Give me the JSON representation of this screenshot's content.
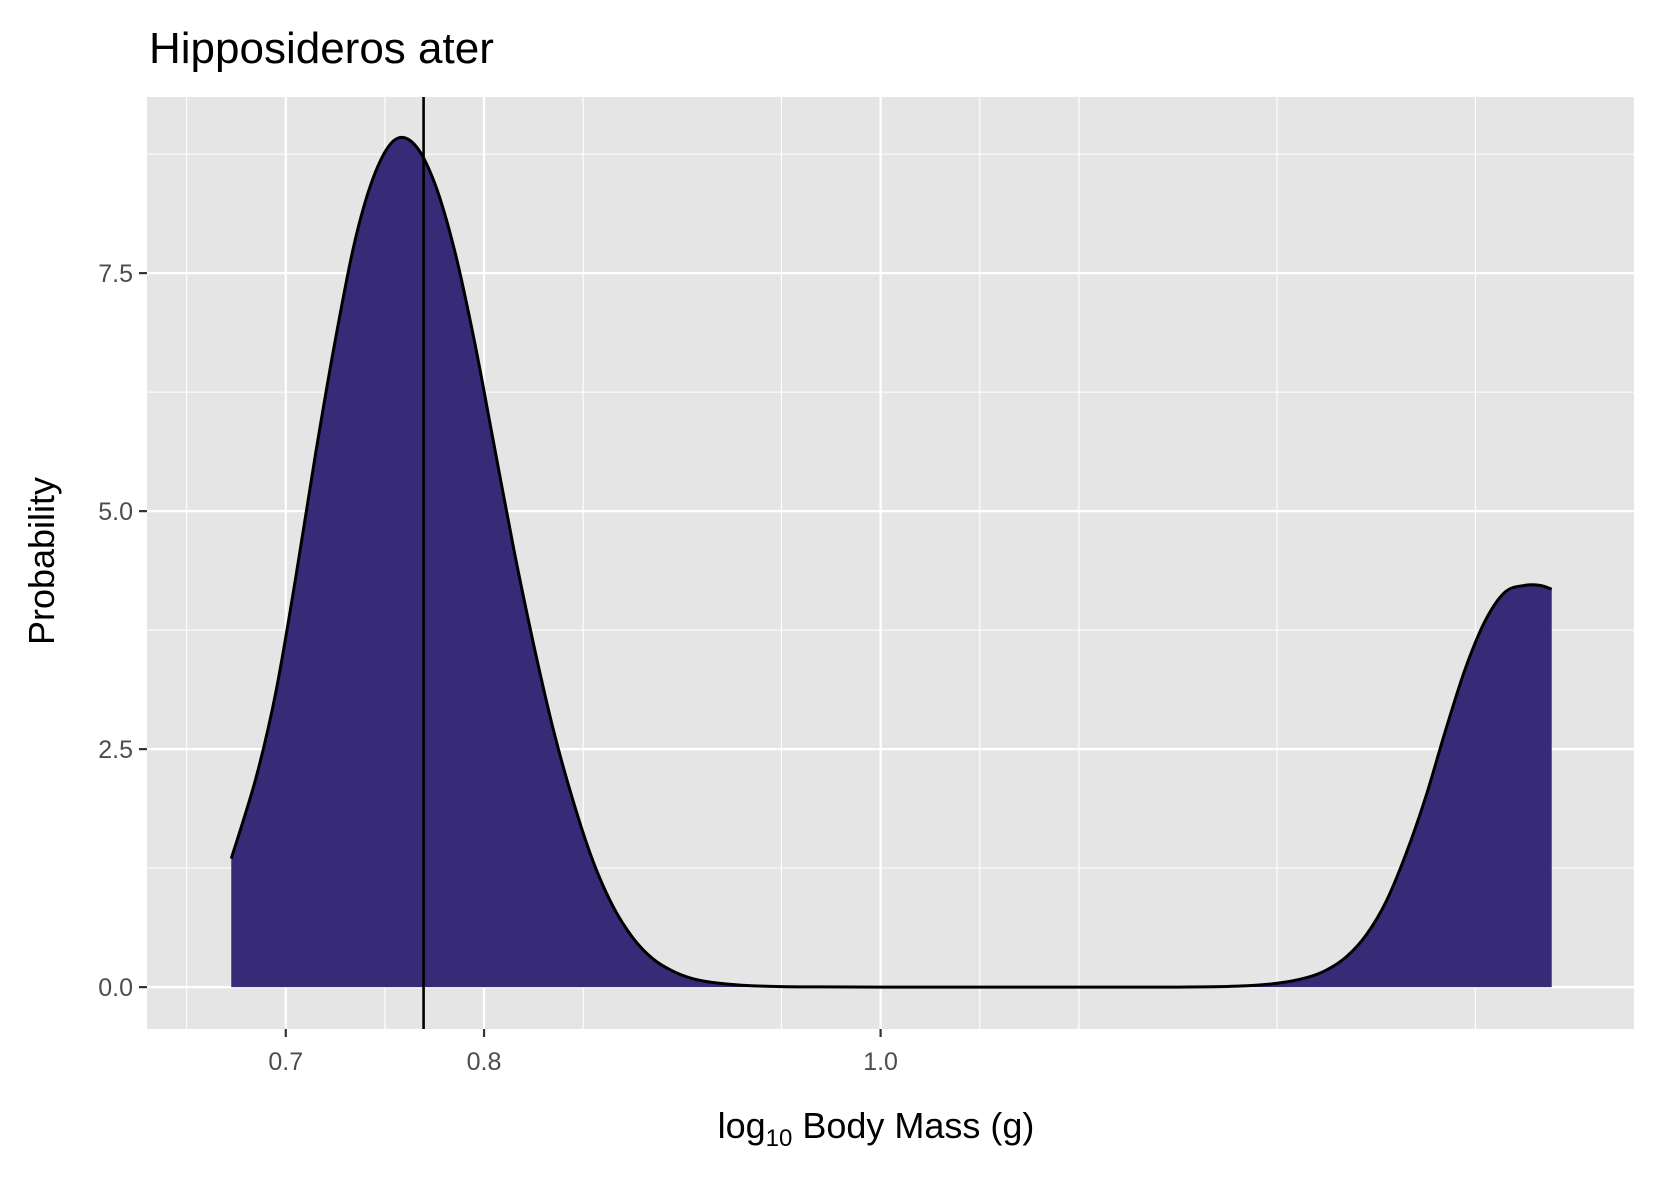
{
  "chart_data": {
    "type": "area",
    "title": "Hipposideros ater",
    "xlabel": {
      "base": "log",
      "subscript": "10",
      "rest": " Body Mass (g)"
    },
    "ylabel": "Probability",
    "x_ticks": [
      {
        "value": 0.7,
        "label": "0.7"
      },
      {
        "value": 0.8,
        "label": "0.8"
      },
      {
        "value": 1.0,
        "label": "1.0"
      }
    ],
    "y_ticks": [
      {
        "value": 0,
        "label": "0.0"
      },
      {
        "value": 2.5,
        "label": "2.5"
      },
      {
        "value": 5,
        "label": "5.0"
      },
      {
        "value": 7.5,
        "label": "7.5"
      }
    ],
    "xlim": [
      0.63,
      1.38
    ],
    "ylim": [
      -0.44,
      9.35
    ],
    "x_minor_ticks": [
      0.6,
      0.65,
      0.75,
      0.85,
      0.95,
      1.05,
      1.1,
      1.2,
      1.3,
      1.4
    ],
    "y_minor_ticks": [
      1.25,
      3.75,
      6.25,
      8.75
    ],
    "reference_line_x": 0.7695,
    "density": {
      "x": [
        0.6725,
        0.685,
        0.695,
        0.705,
        0.715,
        0.725,
        0.735,
        0.745,
        0.755,
        0.765,
        0.775,
        0.785,
        0.795,
        0.805,
        0.815,
        0.825,
        0.835,
        0.845,
        0.855,
        0.865,
        0.875,
        0.885,
        0.895,
        0.905,
        0.915,
        0.93,
        0.95,
        0.97,
        1.0,
        1.05,
        1.1,
        1.15,
        1.18,
        1.2,
        1.215,
        1.225,
        1.235,
        1.245,
        1.255,
        1.265,
        1.275,
        1.285,
        1.295,
        1.305,
        1.315,
        1.325,
        1.3325,
        1.3385
      ],
      "y": [
        1.35,
        2.2,
        3.1,
        4.3,
        5.6,
        6.8,
        7.85,
        8.55,
        8.9,
        8.85,
        8.45,
        7.75,
        6.8,
        5.7,
        4.6,
        3.6,
        2.7,
        1.95,
        1.32,
        0.85,
        0.52,
        0.3,
        0.17,
        0.09,
        0.05,
        0.02,
        0.005,
        0.002,
        0.0,
        0.0,
        0.0,
        0.0,
        0.01,
        0.04,
        0.1,
        0.18,
        0.32,
        0.55,
        0.9,
        1.4,
        2.0,
        2.7,
        3.35,
        3.85,
        4.15,
        4.22,
        4.22,
        4.18
      ]
    },
    "fill_color": "#372B77",
    "line_color": "#000000",
    "panel_background": "#E5E5E5",
    "grid_color": "#FFFFFF",
    "grid": true,
    "legend": "none"
  }
}
